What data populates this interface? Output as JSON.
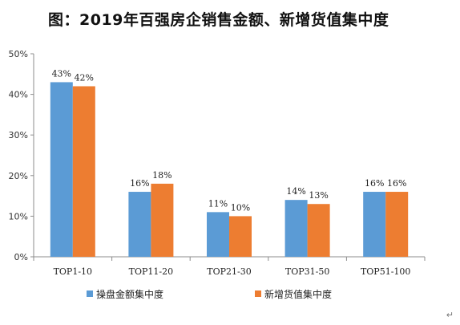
{
  "chart_data": {
    "type": "bar",
    "title": "图：2019年百强房企销售金额、新增货值集中度",
    "categories": [
      "TOP1-10",
      "TOP11-20",
      "TOP21-30",
      "TOP31-50",
      "TOP51-100"
    ],
    "series": [
      {
        "name": "操盘金额集中度",
        "values": [
          43,
          16,
          11,
          14,
          16
        ],
        "color": "#5b9bd5"
      },
      {
        "name": "新增货值集中度",
        "values": [
          42,
          18,
          10,
          13,
          16
        ],
        "color": "#ed7d31"
      }
    ],
    "ylim": [
      0,
      50
    ],
    "yticks": [
      "0%",
      "10%",
      "20%",
      "30%",
      "40%",
      "50%"
    ],
    "value_suffix": "%",
    "legend_position": "bottom",
    "grid": false
  },
  "corner_mark": "↵"
}
